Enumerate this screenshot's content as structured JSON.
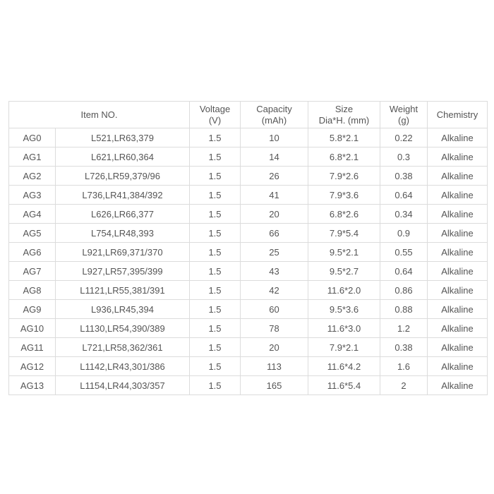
{
  "headers": {
    "item_no": "Item NO.",
    "voltage": [
      "Voltage",
      "(V)"
    ],
    "capacity": [
      "Capacity",
      "(mAh)"
    ],
    "size": [
      "Size",
      "Dia*H. (mm)"
    ],
    "weight": [
      "Weight",
      "(g)"
    ],
    "chemistry": "Chemistry"
  },
  "rows": [
    {
      "model": "AG0",
      "equiv": "L521,LR63,379",
      "voltage": "1.5",
      "capacity": "10",
      "size": "5.8*2.1",
      "weight": "0.22",
      "chemistry": "Alkaline"
    },
    {
      "model": "AG1",
      "equiv": "L621,LR60,364",
      "voltage": "1.5",
      "capacity": "14",
      "size": "6.8*2.1",
      "weight": "0.3",
      "chemistry": "Alkaline"
    },
    {
      "model": "AG2",
      "equiv": "L726,LR59,379/96",
      "voltage": "1.5",
      "capacity": "26",
      "size": "7.9*2.6",
      "weight": "0.38",
      "chemistry": "Alkaline"
    },
    {
      "model": "AG3",
      "equiv": "L736,LR41,384/392",
      "voltage": "1.5",
      "capacity": "41",
      "size": "7.9*3.6",
      "weight": "0.64",
      "chemistry": "Alkaline"
    },
    {
      "model": "AG4",
      "equiv": "L626,LR66,377",
      "voltage": "1.5",
      "capacity": "20",
      "size": "6.8*2.6",
      "weight": "0.34",
      "chemistry": "Alkaline"
    },
    {
      "model": "AG5",
      "equiv": "L754,LR48,393",
      "voltage": "1.5",
      "capacity": "66",
      "size": "7.9*5.4",
      "weight": "0.9",
      "chemistry": "Alkaline"
    },
    {
      "model": "AG6",
      "equiv": "L921,LR69,371/370",
      "voltage": "1.5",
      "capacity": "25",
      "size": "9.5*2.1",
      "weight": "0.55",
      "chemistry": "Alkaline"
    },
    {
      "model": "AG7",
      "equiv": "L927,LR57,395/399",
      "voltage": "1.5",
      "capacity": "43",
      "size": "9.5*2.7",
      "weight": "0.64",
      "chemistry": "Alkaline"
    },
    {
      "model": "AG8",
      "equiv": "L1121,LR55,381/391",
      "voltage": "1.5",
      "capacity": "42",
      "size": "11.6*2.0",
      "weight": "0.86",
      "chemistry": "Alkaline"
    },
    {
      "model": "AG9",
      "equiv": "L936,LR45,394",
      "voltage": "1.5",
      "capacity": "60",
      "size": "9.5*3.6",
      "weight": "0.88",
      "chemistry": "Alkaline"
    },
    {
      "model": "AG10",
      "equiv": "L1130,LR54,390/389",
      "voltage": "1.5",
      "capacity": "78",
      "size": "11.6*3.0",
      "weight": "1.2",
      "chemistry": "Alkaline"
    },
    {
      "model": "AG11",
      "equiv": "L721,LR58,362/361",
      "voltage": "1.5",
      "capacity": "20",
      "size": "7.9*2.1",
      "weight": "0.38",
      "chemistry": "Alkaline"
    },
    {
      "model": "AG12",
      "equiv": "L1142,LR43,301/386",
      "voltage": "1.5",
      "capacity": "113",
      "size": "11.6*4.2",
      "weight": "1.6",
      "chemistry": "Alkaline"
    },
    {
      "model": "AG13",
      "equiv": "L1154,LR44,303/357",
      "voltage": "1.5",
      "capacity": "165",
      "size": "11.6*5.4",
      "weight": "2",
      "chemistry": "Alkaline"
    }
  ]
}
